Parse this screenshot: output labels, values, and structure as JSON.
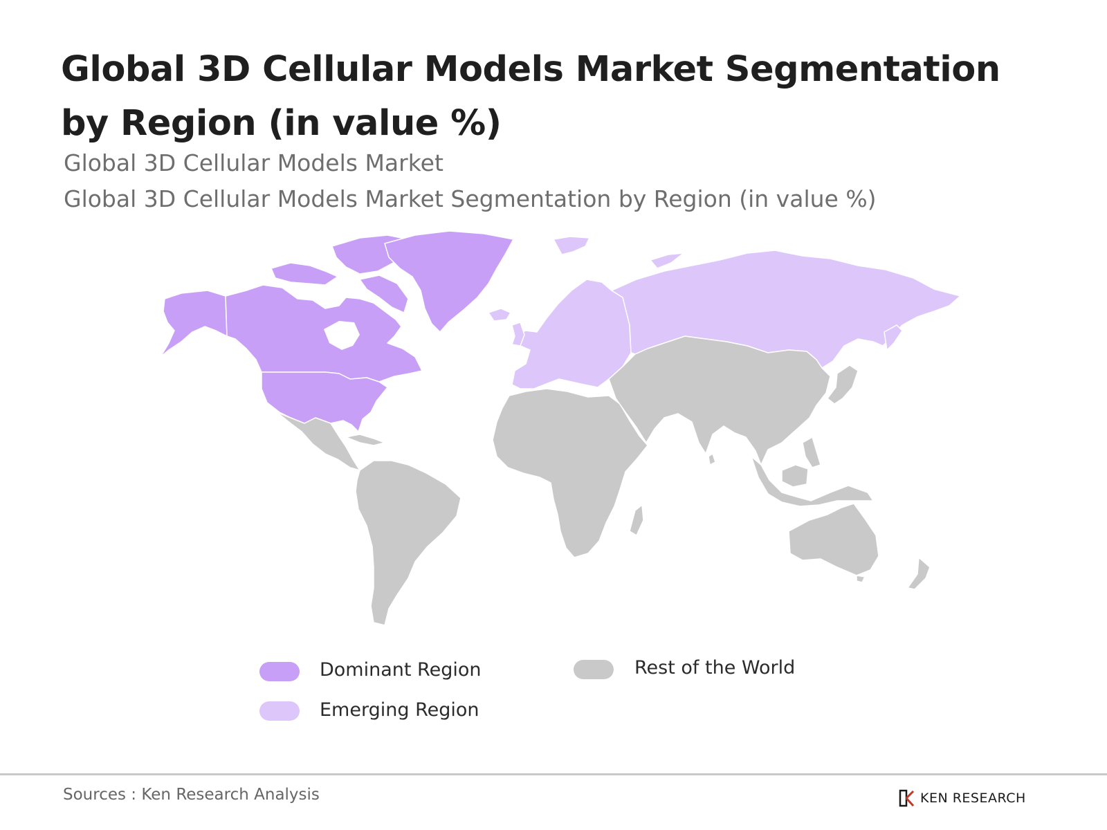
{
  "title": "Global 3D Cellular Models Market Segmentation by Region (in value %)",
  "subtitle_1": "Global 3D Cellular Models Market",
  "subtitle_2": "Global 3D Cellular Models Market Segmentation by Region (in value %)",
  "legend": {
    "dominant": {
      "label": "Dominant Region",
      "color": "#c89ff6"
    },
    "emerging": {
      "label": "Emerging Region",
      "color": "#dcc6fa"
    },
    "rest": {
      "label": "Rest of the World",
      "color": "#c9c9c9"
    }
  },
  "regions": {
    "dominant": [
      "North America",
      "Greenland"
    ],
    "emerging": [
      "Europe",
      "Russia"
    ],
    "rest": [
      "Latin America",
      "Africa",
      "Middle East",
      "Asia",
      "Oceania"
    ]
  },
  "source": "Sources : Ken Research Analysis",
  "brand": {
    "name": "KEN RESEARCH",
    "icon": "ken-research-logo-icon"
  }
}
